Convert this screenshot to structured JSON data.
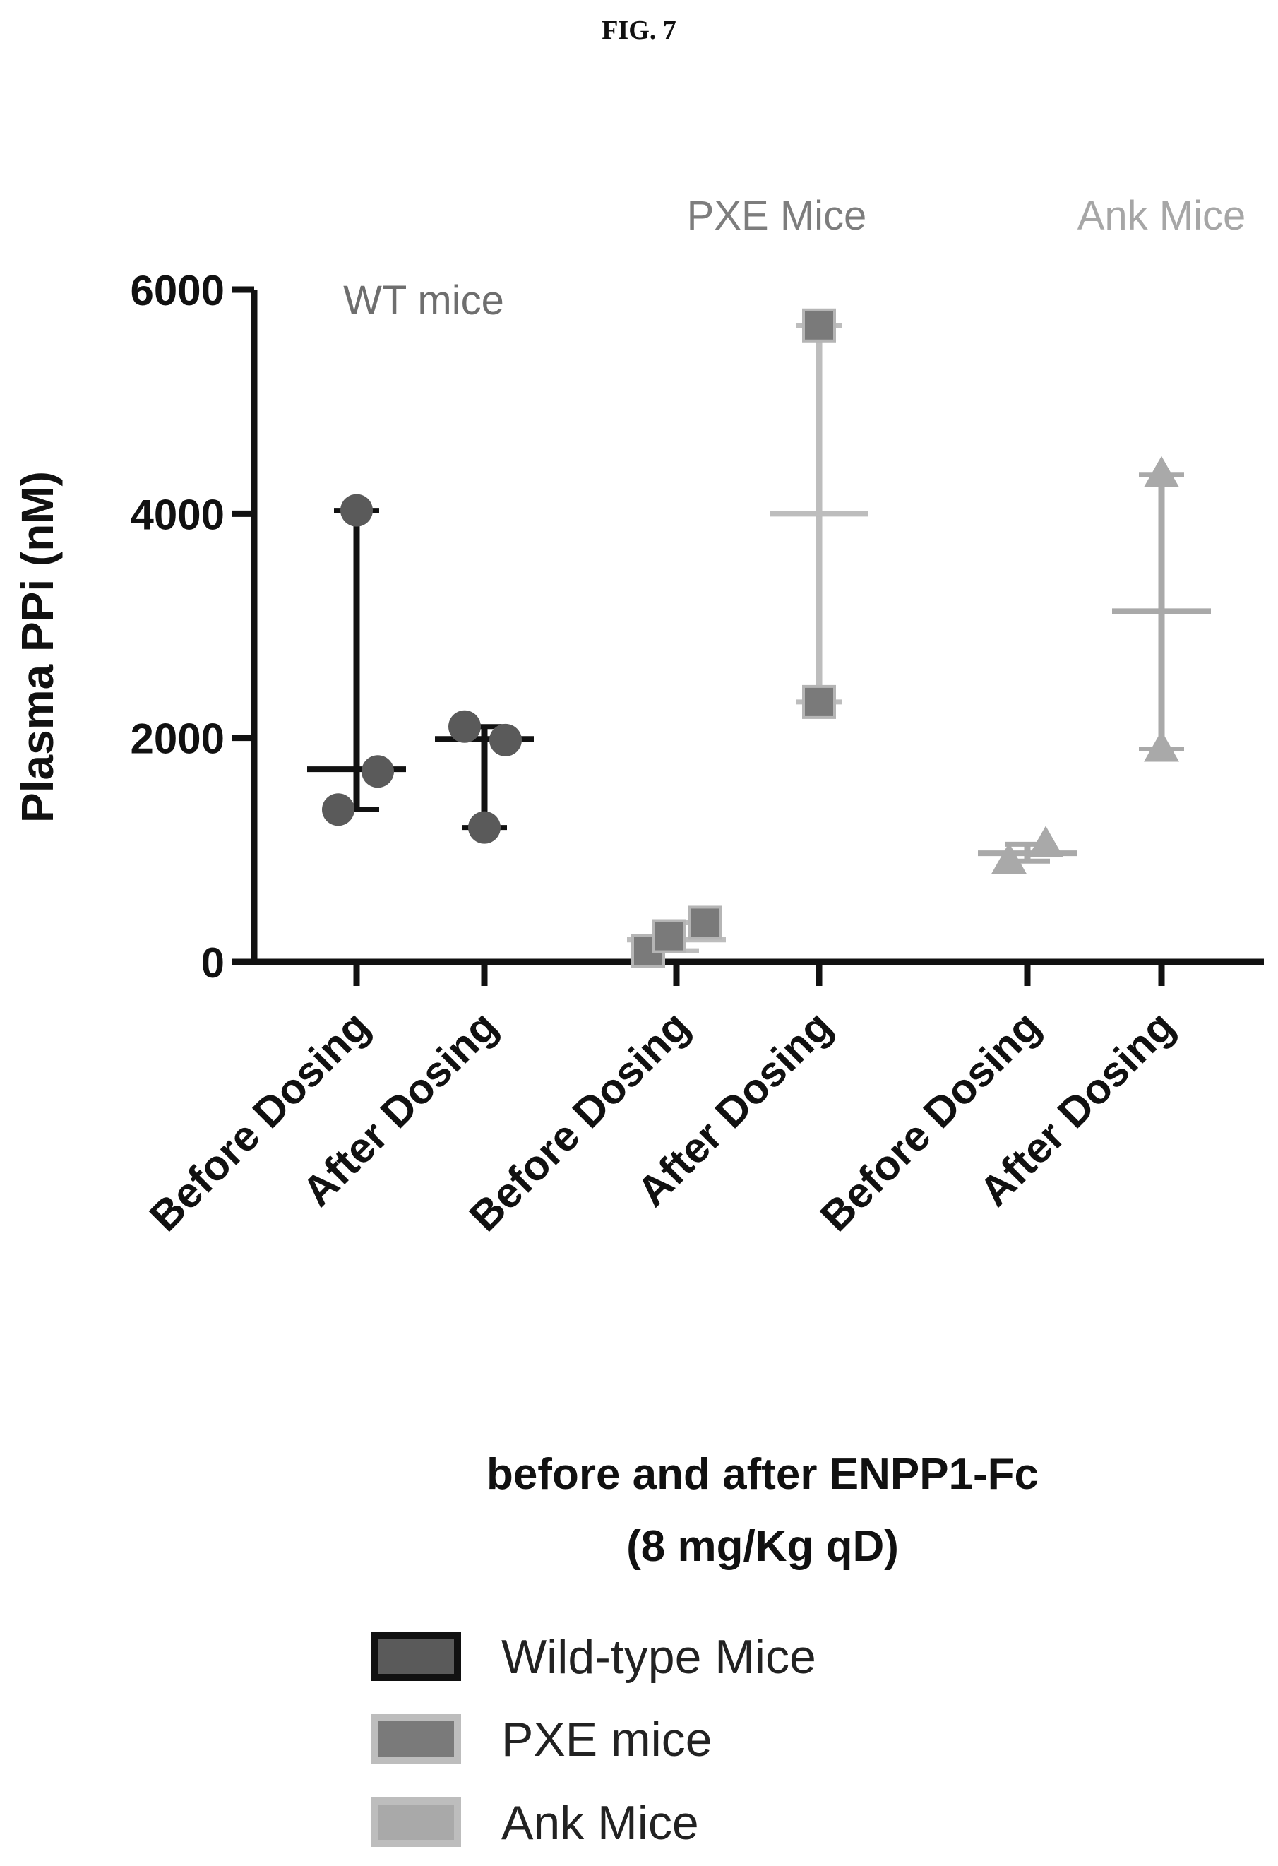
{
  "figure_label": "FIG. 7",
  "chart_data": {
    "type": "scatter",
    "ylabel": "Plasma PPi (nM)",
    "ylim": [
      0,
      6000
    ],
    "yticks": [
      0,
      2000,
      4000,
      6000
    ],
    "categories": [
      "Before Dosing",
      "After Dosing",
      "Before Dosing",
      "After Dosing",
      "Before Dosing",
      "After Dosing"
    ],
    "group_labels": [
      "WT mice",
      "PXE Mice",
      "Ank Mice"
    ],
    "subtitle_line1": "before and after ENPP1-Fc",
    "subtitle_line2": "(8 mg/Kg qD)",
    "series": [
      {
        "name": "Wild-type Mice",
        "marker": "circle",
        "color": "#5a5a5a",
        "bar_color": "#111111",
        "groups": [
          {
            "category": 0,
            "values": [
              4030,
              1700,
              1360
            ],
            "mean": 1720,
            "min": 1360,
            "max": 4030
          },
          {
            "category": 1,
            "values": [
              2100,
              1980,
              1200
            ],
            "mean": 1990,
            "min": 1200,
            "max": 2100
          }
        ]
      },
      {
        "name": "PXE mice",
        "marker": "square",
        "color": "#7a7a7a",
        "bar_color": "#bdbdbd",
        "groups": [
          {
            "category": 2,
            "values": [
              100,
              230,
              350
            ],
            "mean": 200,
            "min": 100,
            "max": 350
          },
          {
            "category": 3,
            "values": [
              5680,
              2320
            ],
            "mean": 4000,
            "min": 2320,
            "max": 5680
          }
        ]
      },
      {
        "name": "Ank Mice",
        "marker": "triangle",
        "color": "#a9a9a9",
        "bar_color": "#a9a9a9",
        "groups": [
          {
            "category": 4,
            "values": [
              900,
              1050
            ],
            "mean": 970,
            "min": 900,
            "max": 1050
          },
          {
            "category": 5,
            "values": [
              4350,
              1900
            ],
            "mean": 3130,
            "min": 1900,
            "max": 4350
          }
        ]
      }
    ],
    "legend": [
      {
        "label": "Wild-type Mice",
        "fill": "#5a5a5a",
        "stroke": "#111111"
      },
      {
        "label": "PXE mice",
        "fill": "#7a7a7a",
        "stroke": "#bdbdbd"
      },
      {
        "label": "Ank Mice",
        "fill": "#a9a9a9",
        "stroke": "#bdbdbd"
      }
    ],
    "group_label_colors": [
      "#6e6e6e",
      "#7d7d7d",
      "#a6a6a6"
    ]
  }
}
